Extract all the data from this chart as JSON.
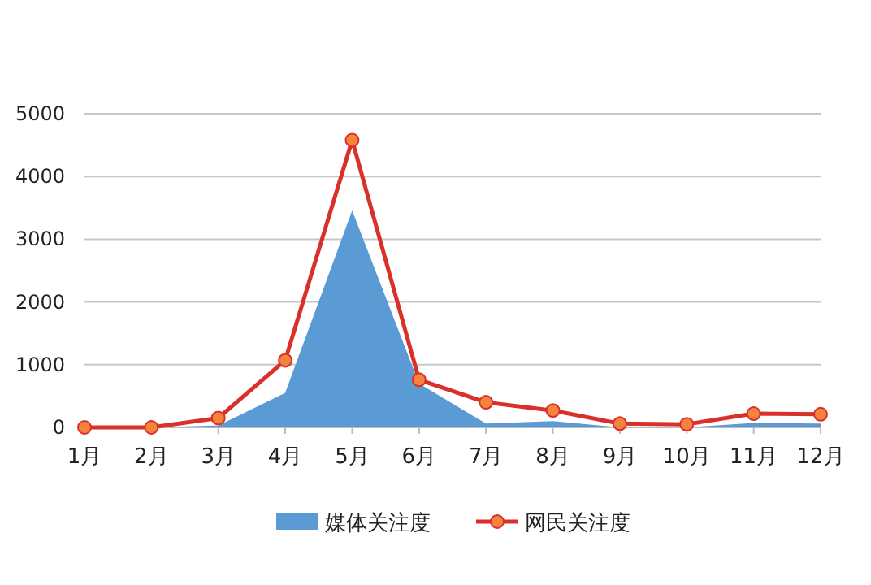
{
  "chart_data": {
    "type": "line",
    "categories": [
      "1月",
      "2月",
      "3月",
      "4月",
      "5月",
      "6月",
      "7月",
      "8月",
      "9月",
      "10月",
      "11月",
      "12月"
    ],
    "series": [
      {
        "name": "媒体关注度",
        "type": "area",
        "color": "#5b9bd5",
        "values": [
          0,
          0,
          30,
          550,
          3460,
          700,
          60,
          100,
          0,
          0,
          70,
          60
        ]
      },
      {
        "name": "网民关注度",
        "color": "#d9302c",
        "marker": "circle",
        "values": [
          0,
          0,
          150,
          1070,
          4580,
          760,
          400,
          270,
          60,
          50,
          220,
          210
        ]
      }
    ],
    "ylim": [
      0,
      5000
    ],
    "yticks": [
      0,
      1000,
      2000,
      3000,
      4000,
      5000
    ],
    "grid": "y",
    "legend": "bottom"
  }
}
